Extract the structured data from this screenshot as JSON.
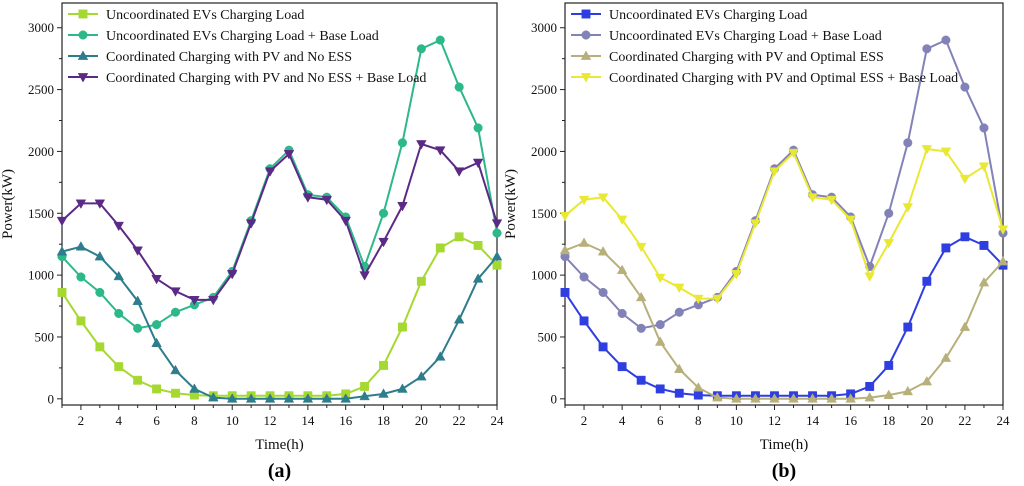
{
  "chart_data": [
    {
      "type": "line",
      "panel_label": "(a)",
      "xlabel": "Time(h)",
      "ylabel": "Power(kW)",
      "xlim": [
        1,
        24
      ],
      "ylim": [
        -50,
        3200
      ],
      "xticks": [
        2,
        4,
        6,
        8,
        10,
        12,
        14,
        16,
        18,
        20,
        22,
        24
      ],
      "yticks": [
        0,
        500,
        1000,
        1500,
        2000,
        2500,
        3000
      ],
      "legend_position": "top-left",
      "x": [
        1,
        2,
        3,
        4,
        5,
        6,
        7,
        8,
        9,
        10,
        11,
        12,
        13,
        14,
        15,
        16,
        17,
        18,
        19,
        20,
        21,
        22,
        23,
        24
      ],
      "series": [
        {
          "name": "Uncoordinated EVs Charging Load",
          "color": "#a6d832",
          "marker": "square",
          "values": [
            860,
            630,
            420,
            260,
            150,
            80,
            45,
            30,
            25,
            25,
            25,
            25,
            25,
            25,
            25,
            40,
            100,
            270,
            580,
            950,
            1220,
            1310,
            1240,
            1080
          ]
        },
        {
          "name": "Uncoordinated EVs Charging Load + Base Load",
          "color": "#2db88b",
          "marker": "circle",
          "values": [
            1150,
            985,
            860,
            690,
            570,
            600,
            700,
            760,
            820,
            1030,
            1440,
            1860,
            2010,
            1650,
            1630,
            1470,
            1070,
            1500,
            2070,
            2830,
            2900,
            2520,
            2190,
            1340
          ]
        },
        {
          "name": "Coordinated Charging with PV and No ESS",
          "color": "#2e7d8c",
          "marker": "triangle-up",
          "values": [
            1190,
            1230,
            1150,
            990,
            790,
            450,
            230,
            80,
            10,
            0,
            0,
            0,
            0,
            0,
            0,
            0,
            20,
            40,
            80,
            180,
            340,
            640,
            970,
            1150
          ]
        },
        {
          "name": "Coordinated Charging with PV and No ESS + Base Load",
          "color": "#5b2a86",
          "marker": "triangle-down",
          "values": [
            1440,
            1580,
            1580,
            1400,
            1200,
            970,
            870,
            800,
            800,
            1010,
            1420,
            1840,
            1980,
            1630,
            1610,
            1440,
            1000,
            1270,
            1560,
            2060,
            2010,
            1840,
            1910,
            1420
          ]
        }
      ]
    },
    {
      "type": "line",
      "panel_label": "(b)",
      "xlabel": "Time(h)",
      "ylabel": "Power(kW)",
      "xlim": [
        1,
        24
      ],
      "ylim": [
        -50,
        3200
      ],
      "xticks": [
        2,
        4,
        6,
        8,
        10,
        12,
        14,
        16,
        18,
        20,
        22,
        24
      ],
      "yticks": [
        0,
        500,
        1000,
        1500,
        2000,
        2500,
        3000
      ],
      "legend_position": "top-left",
      "x": [
        1,
        2,
        3,
        4,
        5,
        6,
        7,
        8,
        9,
        10,
        11,
        12,
        13,
        14,
        15,
        16,
        17,
        18,
        19,
        20,
        21,
        22,
        23,
        24
      ],
      "series": [
        {
          "name": "Uncoordinated EVs Charging Load",
          "color": "#2f3ee0",
          "marker": "square",
          "values": [
            860,
            630,
            420,
            260,
            150,
            80,
            45,
            30,
            25,
            25,
            25,
            25,
            25,
            25,
            25,
            40,
            100,
            270,
            580,
            950,
            1220,
            1310,
            1240,
            1080
          ]
        },
        {
          "name": "Uncoordinated EVs Charging Load + Base Load",
          "color": "#8282b8",
          "marker": "circle",
          "values": [
            1150,
            985,
            860,
            690,
            570,
            600,
            700,
            760,
            820,
            1030,
            1440,
            1860,
            2010,
            1650,
            1630,
            1470,
            1070,
            1500,
            2070,
            2830,
            2900,
            2520,
            2190,
            1340
          ]
        },
        {
          "name": "Coordinated Charging with PV and Optimal ESS",
          "color": "#b8b07a",
          "marker": "triangle-up",
          "values": [
            1200,
            1260,
            1190,
            1040,
            820,
            460,
            240,
            90,
            10,
            0,
            0,
            0,
            0,
            0,
            0,
            0,
            10,
            30,
            60,
            140,
            330,
            580,
            940,
            1110
          ]
        },
        {
          "name": "Coordinated Charging with PV and Optimal ESS + Base Load",
          "color": "#e9e832",
          "marker": "triangle-down",
          "values": [
            1480,
            1610,
            1630,
            1450,
            1230,
            980,
            900,
            810,
            810,
            1010,
            1420,
            1840,
            1990,
            1630,
            1610,
            1450,
            990,
            1260,
            1550,
            2020,
            2000,
            1780,
            1880,
            1370
          ]
        }
      ]
    }
  ]
}
